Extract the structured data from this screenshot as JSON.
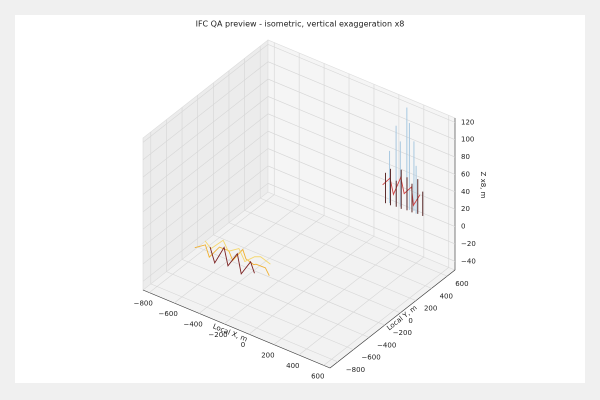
{
  "chart_data": {
    "type": "line3d",
    "title": "IFC QA preview - isometric, vertical exaggeration x8",
    "xlabel": "Local X, m",
    "ylabel": "Local Y, m",
    "zlabel": "Z x8, m",
    "xlim": [
      -850,
      650
    ],
    "ylim": [
      -900,
      700
    ],
    "zlim": [
      -50,
      125
    ],
    "xticks": [
      {
        "value": -800,
        "label": "−800"
      },
      {
        "value": -600,
        "label": "−600"
      },
      {
        "value": -400,
        "label": "−400"
      },
      {
        "value": -200,
        "label": "−200"
      },
      0,
      200,
      400,
      600
    ],
    "yticks": [
      {
        "value": -800,
        "label": "−800"
      },
      {
        "value": -600,
        "label": "−600"
      },
      {
        "value": -400,
        "label": "−400"
      },
      {
        "value": -200,
        "label": "−200"
      },
      0,
      200,
      400,
      600
    ],
    "zticks": [
      {
        "value": -40,
        "label": "−40"
      },
      {
        "value": -20,
        "label": "−20"
      },
      0,
      20,
      40,
      60,
      80,
      100,
      120
    ],
    "grid": true,
    "series": [
      {
        "color": "#f0b030",
        "style": "line",
        "x": [
          -560,
          -500,
          -450,
          -400,
          -350,
          -300,
          -250,
          -200,
          -150,
          -100,
          -50,
          0
        ],
        "y": [
          -700,
          -660,
          -690,
          -640,
          -600,
          -630,
          -580,
          -620,
          -600,
          -650,
          -610,
          -640
        ],
        "z": [
          2,
          6,
          -3,
          8,
          4,
          -2,
          10,
          5,
          0,
          7,
          3,
          -1
        ]
      },
      {
        "color": "#f5d76e",
        "style": "line",
        "x": [
          -540,
          -480,
          -420,
          -360,
          -300,
          -240,
          -180,
          -120,
          -60
        ],
        "y": [
          -600,
          -620,
          -560,
          -590,
          -550,
          -570,
          -540,
          -560,
          -530
        ],
        "z": [
          4,
          0,
          9,
          2,
          6,
          -4,
          3,
          8,
          1
        ]
      },
      {
        "color": "#7a1f1f",
        "style": "line",
        "x": [
          -450,
          -400,
          -350,
          -300,
          -250,
          -200,
          -150,
          -100
        ],
        "y": [
          -680,
          -700,
          -660,
          -690,
          -650,
          -680,
          -640,
          -670
        ],
        "z": [
          8,
          -6,
          12,
          -4,
          10,
          -8,
          6,
          -2
        ]
      },
      {
        "color": "#a8c8e0",
        "style": "stem",
        "x": [
          150,
          190,
          230,
          270,
          300,
          330,
          360
        ],
        "y": [
          660,
          680,
          670,
          690,
          675,
          685,
          665
        ],
        "z": [
          60,
          90,
          75,
          115,
          100,
          80,
          55
        ]
      },
      {
        "color": "#d04040",
        "style": "line",
        "x": [
          120,
          160,
          200,
          240,
          280,
          320,
          360,
          400
        ],
        "y": [
          620,
          650,
          630,
          660,
          640,
          670,
          630,
          650
        ],
        "z": [
          22,
          30,
          15,
          35,
          20,
          28,
          12,
          25
        ]
      },
      {
        "color": "#5a2a2a",
        "style": "stem",
        "x": [
          130,
          170,
          210,
          250,
          290,
          330,
          370,
          410
        ],
        "y": [
          640,
          640,
          650,
          650,
          660,
          660,
          670,
          670
        ],
        "z": [
          35,
          42,
          30,
          45,
          38,
          33,
          40,
          28
        ]
      }
    ]
  }
}
